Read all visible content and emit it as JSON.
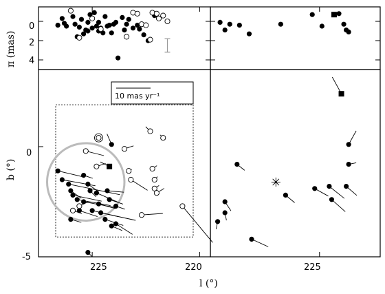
{
  "chart_data": [
    {
      "panel": "top-left",
      "type": "scatter",
      "ylabel": "π (mas)",
      "ylim": [
        5,
        -1.5
      ],
      "xlim": [
        227.5,
        219.5
      ],
      "yticks": [
        "0",
        "2",
        "4"
      ],
      "error_bar": {
        "x": 221.5,
        "y": [
          1.8,
          3.2
        ]
      },
      "filled": [
        [
          226.6,
          0.4
        ],
        [
          226.3,
          0.2
        ],
        [
          226.4,
          -0.3
        ],
        [
          226.2,
          0.5
        ],
        [
          225.9,
          -0.5
        ],
        [
          225.8,
          0.3
        ],
        [
          225.6,
          0.6
        ],
        [
          225.5,
          -0.2
        ],
        [
          225.4,
          1.3
        ],
        [
          225.3,
          0.9
        ],
        [
          225.2,
          0.1
        ],
        [
          225.1,
          -0.7
        ],
        [
          225.0,
          0.7
        ],
        [
          224.9,
          -0.9
        ],
        [
          224.8,
          0.5
        ],
        [
          224.7,
          0.1
        ],
        [
          224.6,
          0.7
        ],
        [
          224.5,
          1.2
        ],
        [
          224.4,
          -0.5
        ],
        [
          224.3,
          0.5
        ],
        [
          224.2,
          0.4
        ],
        [
          224.1,
          1.2
        ],
        [
          224.0,
          0.3
        ],
        [
          223.9,
          0.1
        ],
        [
          223.8,
          3.8
        ],
        [
          223.6,
          -0.4
        ],
        [
          223.5,
          0.9
        ],
        [
          223.4,
          0.3
        ],
        [
          223.3,
          -0.2
        ],
        [
          223.1,
          0.7
        ],
        [
          222.9,
          0.4
        ],
        [
          222.8,
          0.8
        ],
        [
          222.6,
          1.4
        ],
        [
          222.4,
          2.0
        ],
        [
          222.1,
          -0.6
        ],
        [
          225.7,
          1.6
        ],
        [
          225.2,
          1.0
        ],
        [
          224.7,
          1.0
        ]
      ],
      "open": [
        [
          226.0,
          -1.1
        ],
        [
          225.6,
          1.7
        ],
        [
          225.0,
          -0.3
        ],
        [
          224.6,
          0.8
        ],
        [
          223.4,
          1.6
        ],
        [
          223.1,
          -0.9
        ],
        [
          222.9,
          -0.8
        ],
        [
          222.7,
          0.3
        ],
        [
          222.5,
          0.4
        ],
        [
          222.3,
          1.9
        ],
        [
          222.2,
          -0.9
        ],
        [
          222.0,
          -0.8
        ],
        [
          221.9,
          -0.3
        ],
        [
          221.7,
          -0.6
        ],
        [
          221.5,
          0.0
        ]
      ]
    },
    {
      "panel": "top-right",
      "type": "scatter",
      "xlim": [
        229.5,
        222.5
      ],
      "ylim": [
        5,
        -1.5
      ],
      "filled": [
        [
          229.1,
          0.1
        ],
        [
          228.9,
          0.9
        ],
        [
          228.7,
          0.3
        ],
        [
          228.3,
          0.4
        ],
        [
          227.9,
          1.3
        ],
        [
          226.6,
          0.3
        ],
        [
          225.3,
          -0.7
        ],
        [
          224.9,
          0.5
        ],
        [
          224.2,
          -0.8
        ],
        [
          224.0,
          0.3
        ],
        [
          223.9,
          0.9
        ],
        [
          223.8,
          1.1
        ]
      ],
      "square": [
        [
          224.4,
          -0.7
        ]
      ]
    },
    {
      "panel": "bottom-left",
      "type": "scatter",
      "xlabel": "l (°)",
      "ylabel": "b (°)",
      "xlim": [
        227.5,
        219.5
      ],
      "ylim": [
        -5,
        3.5
      ],
      "xticks": [
        "225",
        "220"
      ],
      "yticks": [
        "0",
        "-5"
      ],
      "scale_label": "10 mas yr⁻¹",
      "vectors": [
        [
          226.6,
          -1.1,
          -1.7,
          -0.4
        ],
        [
          226.4,
          -1.5,
          -2.2,
          -0.4
        ],
        [
          226.1,
          -1.7,
          -3.4,
          -0.7
        ],
        [
          226.0,
          -2.0,
          -0.7,
          -0.5
        ],
        [
          225.9,
          -2.2,
          -1.9,
          -0.4
        ],
        [
          225.7,
          -2.4,
          -2.2,
          -0.4
        ],
        [
          225.6,
          -2.9,
          -1.2,
          -0.4
        ],
        [
          225.4,
          -1.3,
          -0.6,
          -0.2
        ],
        [
          225.4,
          -2.5,
          -2.2,
          -0.4
        ],
        [
          225.2,
          -1.7,
          -0.7,
          -0.5
        ],
        [
          225.1,
          -2.0,
          -0.4,
          -0.4
        ],
        [
          225.0,
          -2.9,
          -1.7,
          -0.4
        ],
        [
          224.8,
          -2.1,
          -1.4,
          -0.6
        ],
        [
          224.7,
          -2.6,
          -1.1,
          -0.3
        ],
        [
          224.6,
          -3.0,
          -2.3,
          -0.5
        ],
        [
          224.4,
          -3.3,
          -1.2,
          -0.4
        ],
        [
          224.3,
          -2.0,
          -1.1,
          -0.1
        ],
        [
          224.2,
          -2.4,
          -0.9,
          -0.3
        ],
        [
          224.1,
          -3.6,
          -0.7,
          -0.3
        ],
        [
          223.9,
          -2.7,
          -0.6,
          -0.2
        ],
        [
          223.9,
          -3.5,
          -1.1,
          -0.7
        ],
        [
          224.1,
          0.1,
          0.3,
          0.7
        ],
        [
          226.0,
          -3.3,
          -0.7,
          -0.2
        ],
        [
          225.2,
          -4.8,
          -0.3,
          -0.3
        ]
      ],
      "open_vectors": [
        [
          225.3,
          -0.2,
          -1.2,
          -0.3
        ],
        [
          224.8,
          -0.9,
          -0.6,
          0.2
        ],
        [
          223.5,
          -0.1,
          -0.6,
          0.2
        ],
        [
          223.3,
          -1.1,
          -0.2,
          0.1
        ],
        [
          223.2,
          -1.5,
          -1.1,
          -0.7
        ],
        [
          222.7,
          -3.1,
          -1.4,
          0.1
        ],
        [
          222.3,
          0.7,
          0.3,
          0.3
        ],
        [
          222.2,
          -1.0,
          -0.3,
          0.2
        ],
        [
          222.1,
          -1.5,
          -0.2,
          0.2
        ],
        [
          222.1,
          -1.9,
          -0.3,
          0.2
        ],
        [
          222.0,
          -2.1,
          -0.5,
          0.3
        ],
        [
          221.7,
          0.4,
          0.2,
          0.2
        ],
        [
          220.8,
          -2.7,
          -2.0,
          -2.4
        ],
        [
          225.6,
          -2.7,
          -0.6,
          0.3
        ],
        [
          225.9,
          -2.9,
          -0.6,
          -0.2
        ]
      ],
      "ringed_open": [
        [
          224.7,
          0.4
        ]
      ],
      "square": [
        [
          224.2,
          -0.9,
          -0.6,
          0.3
        ]
      ],
      "dashed_box": {
        "xlim": [
          226.7,
          220.3
        ],
        "ylim": [
          -4.1,
          1.9
        ]
      },
      "circle": {
        "x": 225.3,
        "y": -1.6,
        "r": 1.8
      }
    },
    {
      "panel": "bottom-right",
      "type": "scatter",
      "xlim": [
        229.5,
        222.5
      ],
      "ylim": [
        -5,
        3.5
      ],
      "xticks": [
        "225"
      ],
      "vectors": [
        [
          229.2,
          -3.4,
          0.1,
          -0.5
        ],
        [
          228.9,
          -3.0,
          -0.1,
          -0.5
        ],
        [
          228.9,
          -2.5,
          -0.4,
          -0.6
        ],
        [
          228.4,
          -0.8,
          -0.5,
          -0.4
        ],
        [
          227.8,
          -4.2,
          -1.1,
          -0.5
        ],
        [
          226.4,
          -2.2,
          -0.6,
          -0.5
        ],
        [
          225.2,
          -1.9,
          -0.9,
          -0.5
        ],
        [
          224.6,
          -1.8,
          -1.0,
          -0.8
        ],
        [
          224.5,
          -2.4,
          -0.9,
          -0.8
        ],
        [
          223.9,
          -1.8,
          -0.7,
          -0.6
        ],
        [
          223.8,
          -0.8,
          -0.5,
          0.1
        ],
        [
          223.8,
          0.1,
          -0.5,
          0.9
        ]
      ],
      "square": [
        [
          224.1,
          2.4,
          -0.6,
          1.1
        ]
      ],
      "star": [
        [
          226.8,
          -1.6
        ]
      ]
    }
  ]
}
